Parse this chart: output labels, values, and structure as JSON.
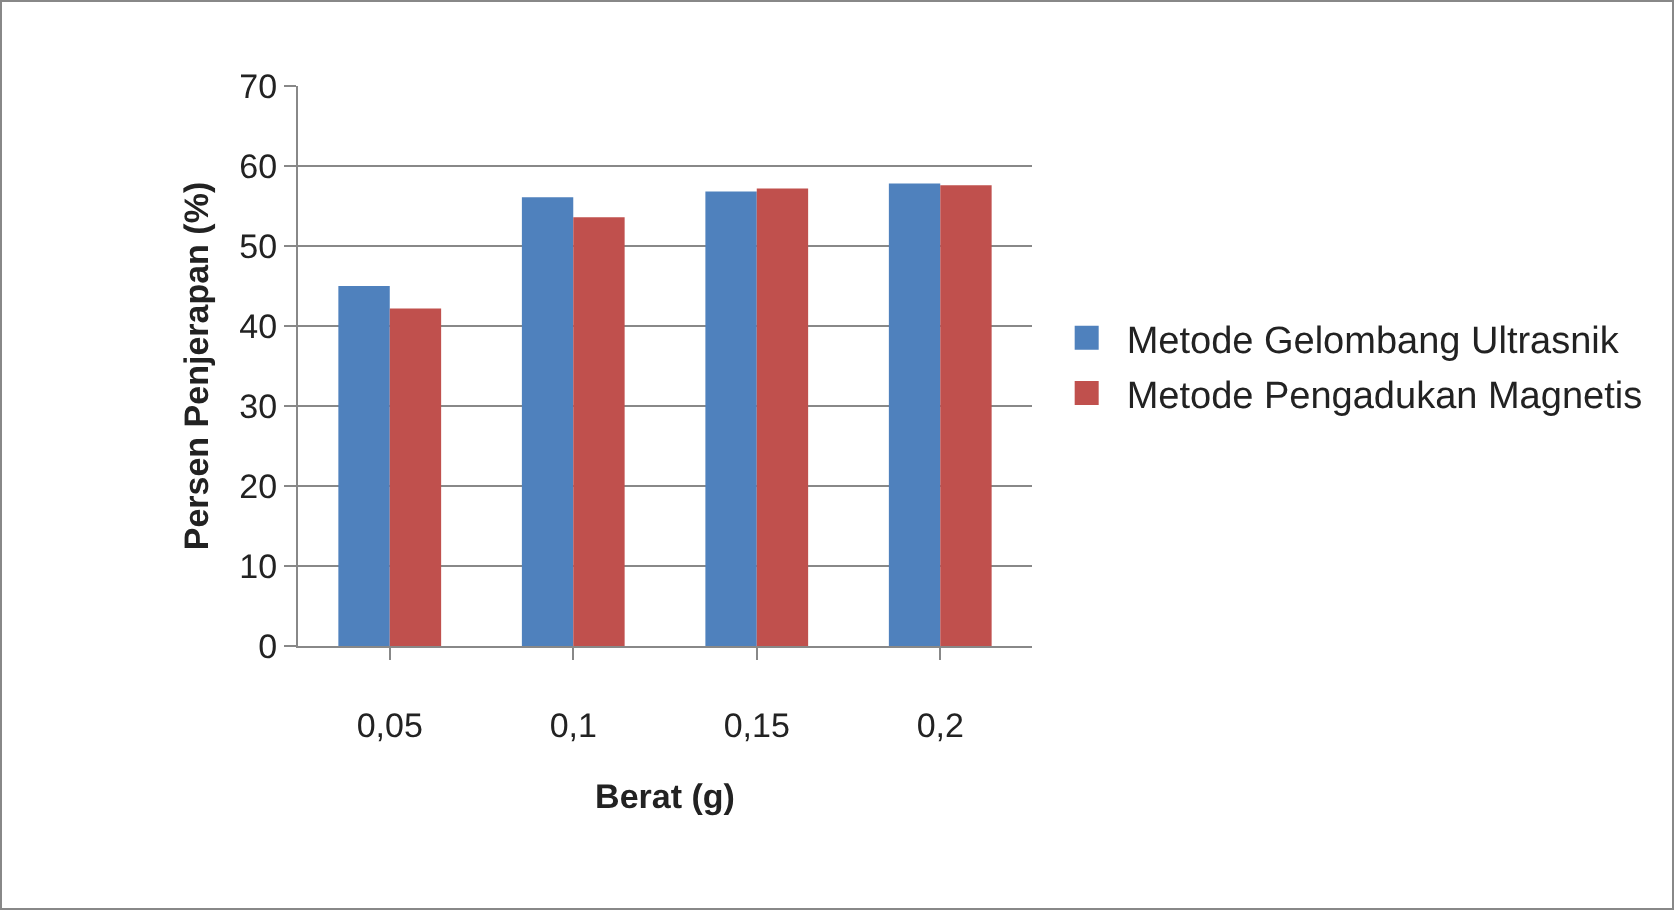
{
  "chart_data": {
    "type": "bar",
    "xlabel": "Berat (g)",
    "ylabel": "Persen Penjerapan (%)",
    "categories": [
      "0,05",
      "0,1",
      "0,15",
      "0,2"
    ],
    "series": [
      {
        "name": "Metode Gelombang Ultrasnik",
        "color": "#4f81bd",
        "values": [
          45.0,
          56.1,
          56.8,
          57.8
        ]
      },
      {
        "name": "Metode Pengadukan Magnetis",
        "color": "#c0504d",
        "values": [
          42.2,
          53.6,
          57.2,
          57.6
        ]
      }
    ],
    "ylim": [
      0,
      70
    ],
    "yticks": [
      0,
      10,
      20,
      30,
      40,
      50,
      60,
      70
    ],
    "grid": "y",
    "legend": "right"
  }
}
